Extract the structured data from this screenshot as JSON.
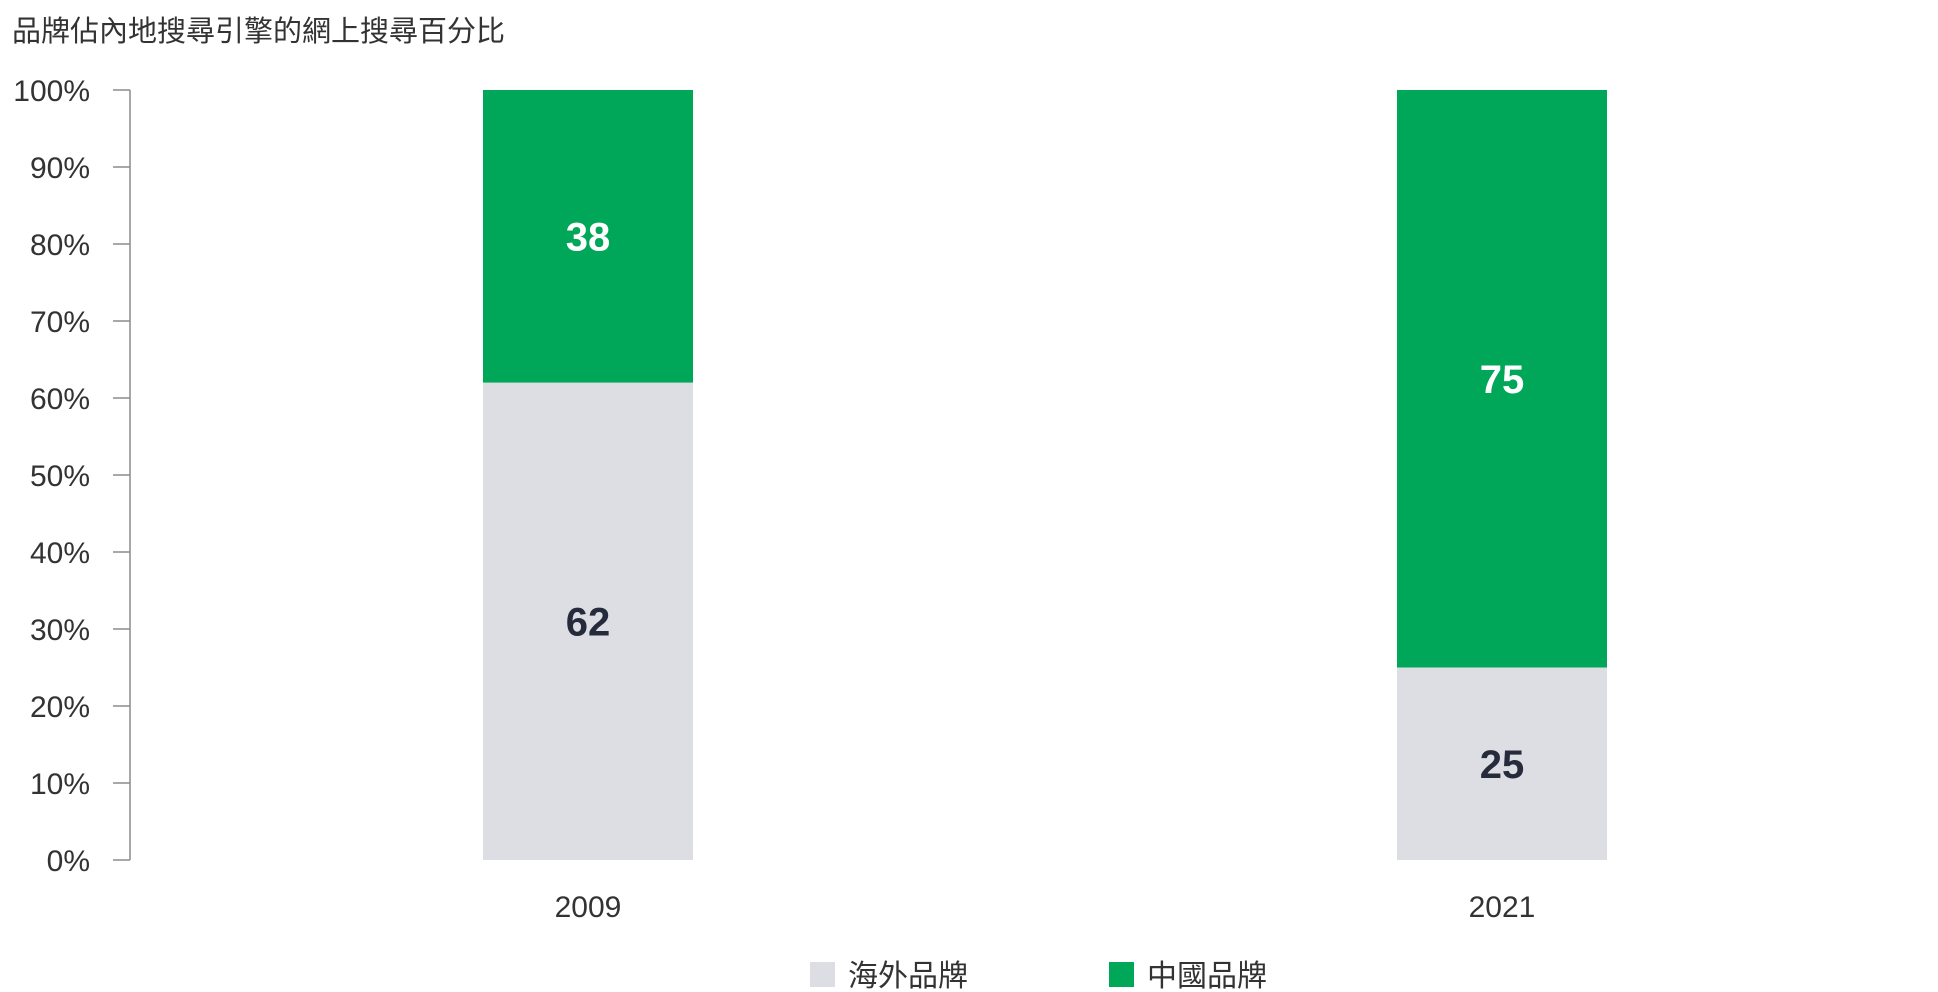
{
  "chart_data": {
    "type": "bar",
    "stacked": true,
    "title": "品牌佔內地搜尋引擎的網上搜尋百分比",
    "categories": [
      "2009",
      "2021"
    ],
    "series": [
      {
        "name": "海外品牌",
        "values": [
          62,
          25
        ],
        "color": "#DDDEE3",
        "label_color": "#262B3C"
      },
      {
        "name": "中國品牌",
        "values": [
          38,
          75
        ],
        "color": "#00A758",
        "label_color": "#FFFFFF"
      }
    ],
    "yticks": [
      "0%",
      "10%",
      "20%",
      "30%",
      "40%",
      "50%",
      "60%",
      "70%",
      "80%",
      "90%",
      "100%"
    ],
    "ylim": [
      0,
      100
    ],
    "xlabel": "",
    "ylabel": "",
    "grid": false,
    "legend": "bottom-center"
  }
}
